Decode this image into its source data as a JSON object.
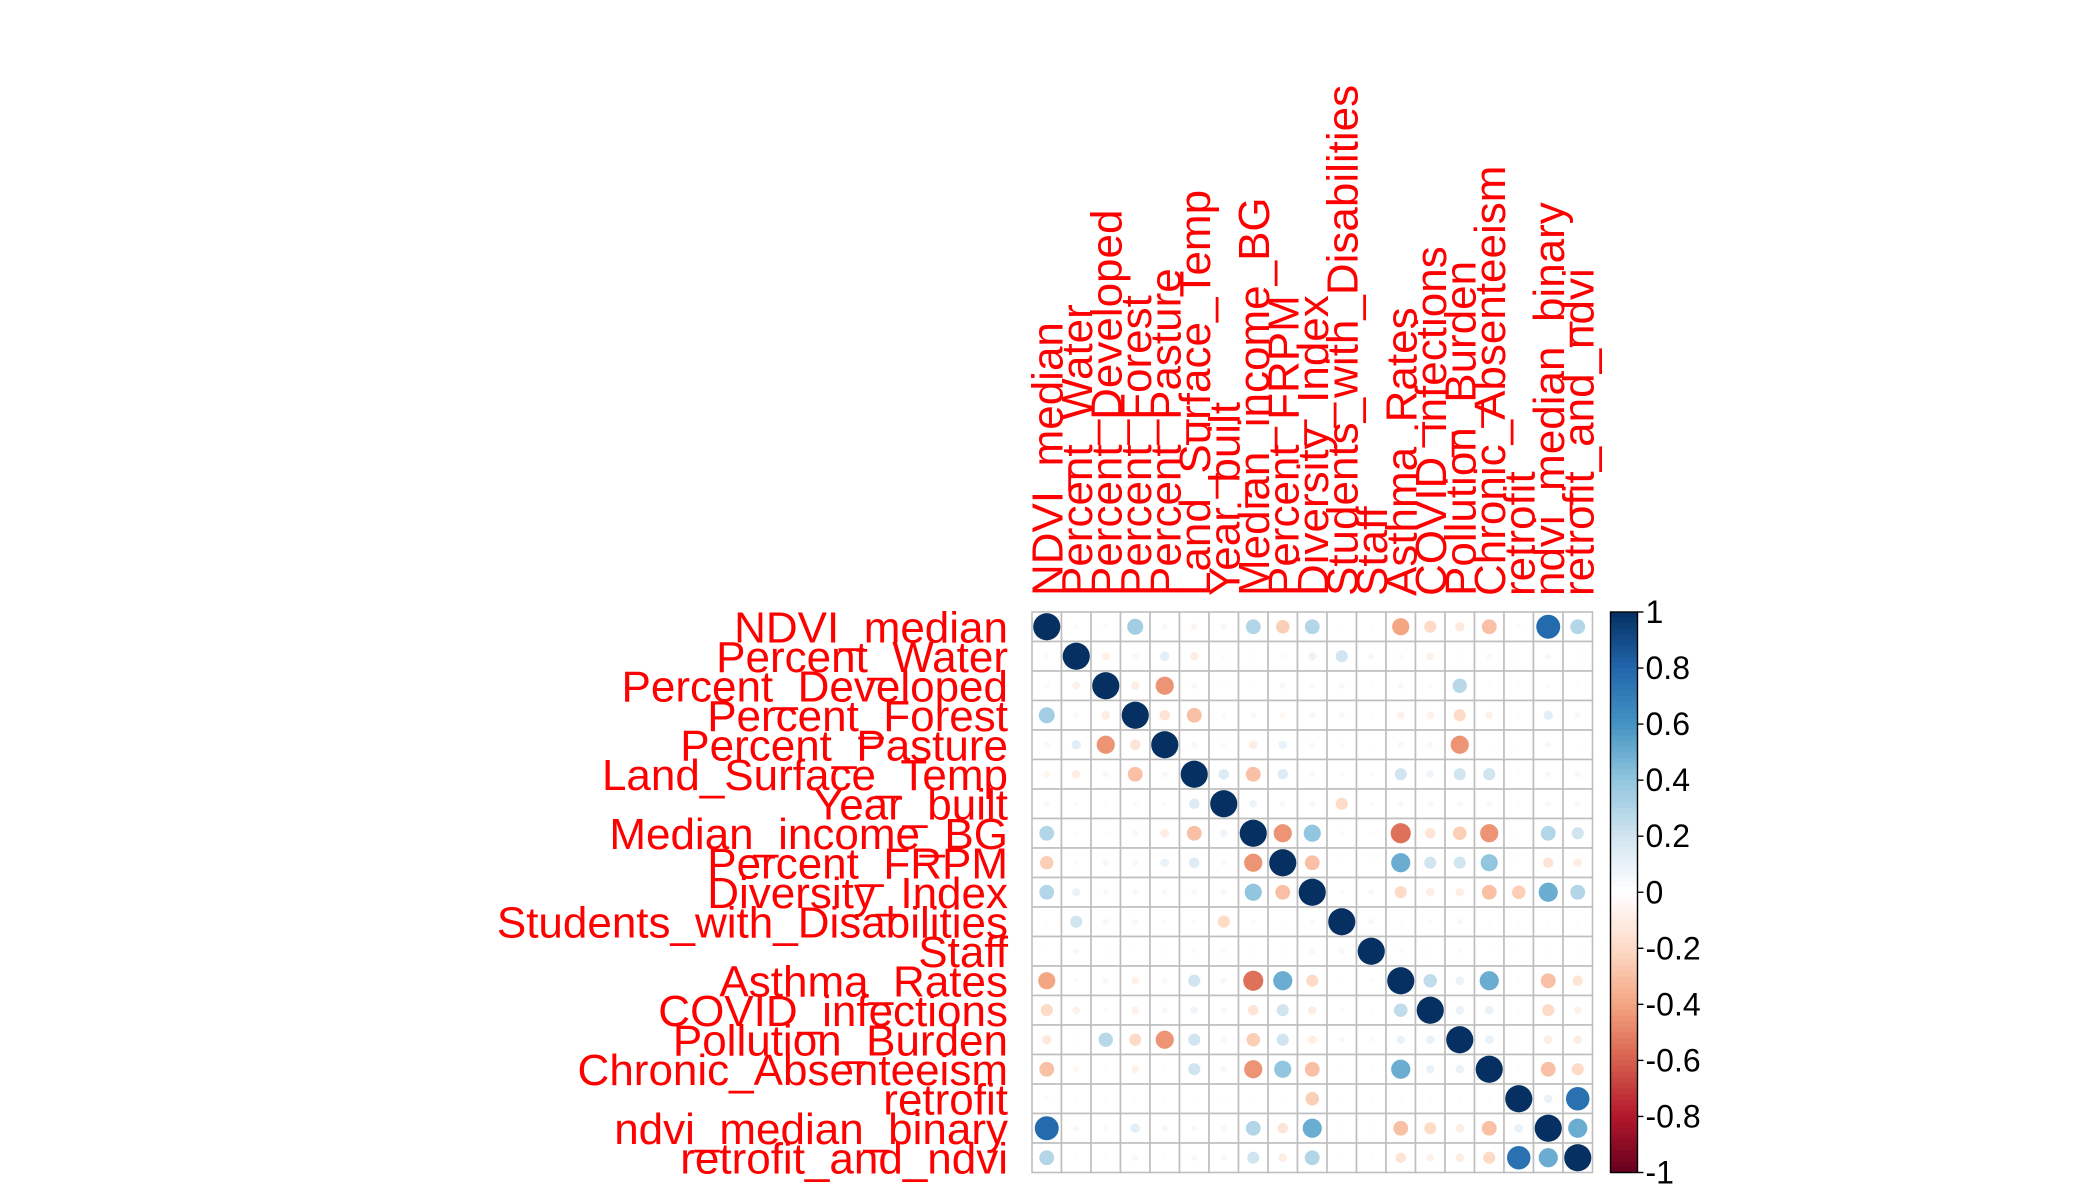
{
  "chart_data": {
    "type": "heatmap",
    "variables": [
      "NDVI_median",
      "Percent_Water",
      "Percent_Developed",
      "Percent_Forest",
      "Percent_Pasture",
      "Land_Surface_Temp",
      "Year_built",
      "Median_income_BG",
      "Percent_FRPM",
      "Diversity_Index",
      "Students_with_Disabilities",
      "Staff",
      "Asthma_Rates",
      "COVID_infections",
      "Pollution_Burden",
      "Chronic_Absenteeism",
      "retrofit",
      "ndvi_median_binary",
      "retrofit_and_ndvi"
    ],
    "matrix": [
      [
        1,
        0.03,
        -0.04,
        0.35,
        0.05,
        -0.06,
        0.05,
        0.3,
        -0.25,
        0.3,
        0.02,
        0.02,
        -0.4,
        -0.2,
        -0.12,
        -0.3,
        0.03,
        0.78,
        0.3
      ],
      [
        0.03,
        1,
        -0.08,
        0.05,
        0.12,
        -0.1,
        0.03,
        0.02,
        0.03,
        0.09,
        0.2,
        0.05,
        0.03,
        -0.08,
        0.02,
        -0.05,
        0.02,
        0.05,
        0.02
      ],
      [
        -0.04,
        -0.08,
        1,
        -0.1,
        -0.45,
        0.05,
        0.02,
        0.02,
        0.05,
        0.04,
        0.05,
        0.02,
        0.05,
        0.03,
        0.28,
        0.02,
        0.02,
        0.03,
        0.02
      ],
      [
        0.35,
        0.05,
        -0.1,
        1,
        -0.15,
        -0.3,
        0.03,
        0.05,
        -0.05,
        0.05,
        0.05,
        0.02,
        -0.08,
        -0.08,
        -0.2,
        -0.08,
        0.02,
        0.12,
        0.05
      ],
      [
        0.05,
        0.12,
        -0.45,
        -0.15,
        1,
        0.05,
        0.03,
        -0.1,
        0.1,
        0.04,
        0.03,
        0.02,
        0.05,
        0.05,
        -0.45,
        0.02,
        0.02,
        0.05,
        0.02
      ],
      [
        -0.06,
        -0.1,
        0.05,
        -0.3,
        0.05,
        1,
        0.15,
        -0.3,
        0.15,
        0.05,
        0.03,
        0.03,
        0.2,
        0.08,
        0.2,
        0.2,
        0.02,
        0.05,
        0.05
      ],
      [
        0.05,
        0.03,
        0.02,
        0.03,
        0.03,
        0.15,
        1,
        0.08,
        0.05,
        0.05,
        -0.2,
        0.03,
        0.05,
        0.05,
        0.05,
        0.05,
        0.02,
        0.05,
        0.05
      ],
      [
        0.3,
        0.02,
        0.02,
        0.05,
        -0.1,
        -0.3,
        0.08,
        1,
        -0.45,
        0.4,
        0.03,
        0.02,
        -0.55,
        -0.15,
        -0.25,
        -0.45,
        0.02,
        0.3,
        0.2
      ],
      [
        -0.25,
        0.03,
        0.05,
        -0.05,
        0.1,
        0.15,
        0.05,
        -0.45,
        1,
        -0.3,
        0.02,
        0.02,
        0.5,
        0.2,
        0.2,
        0.4,
        0.02,
        -0.15,
        -0.1
      ],
      [
        0.3,
        0.09,
        0.04,
        0.05,
        0.04,
        0.05,
        0.05,
        0.4,
        -0.3,
        1,
        0.03,
        0.05,
        -0.2,
        -0.1,
        -0.1,
        -0.3,
        -0.25,
        0.5,
        0.3
      ],
      [
        0.02,
        0.2,
        0.05,
        0.05,
        0.03,
        0.03,
        -0.2,
        0.03,
        0.02,
        0.03,
        1,
        0.05,
        0.02,
        0.03,
        0.05,
        0.02,
        0.02,
        0.02,
        0.02
      ],
      [
        0.02,
        0.05,
        0.02,
        0.02,
        0.02,
        0.03,
        0.03,
        0.02,
        0.02,
        0.05,
        0.05,
        1,
        0.03,
        0.02,
        0.03,
        0.02,
        0.02,
        0.02,
        0.02
      ],
      [
        -0.4,
        0.03,
        0.05,
        -0.08,
        0.05,
        0.2,
        0.05,
        -0.55,
        0.5,
        -0.2,
        0.02,
        0.03,
        1,
        0.25,
        0.1,
        0.5,
        0.02,
        -0.3,
        -0.15
      ],
      [
        -0.2,
        -0.08,
        0.03,
        -0.08,
        0.05,
        0.08,
        0.05,
        -0.15,
        0.2,
        -0.1,
        0.03,
        0.02,
        0.25,
        1,
        0.1,
        0.1,
        0.02,
        -0.2,
        -0.08
      ],
      [
        -0.12,
        0.02,
        0.28,
        -0.2,
        -0.45,
        0.2,
        0.05,
        -0.25,
        0.2,
        -0.1,
        0.05,
        0.03,
        0.1,
        0.1,
        1,
        0.1,
        0.02,
        -0.1,
        -0.1
      ],
      [
        -0.3,
        -0.05,
        0.02,
        -0.08,
        0.02,
        0.2,
        0.05,
        -0.45,
        0.4,
        -0.3,
        0.02,
        0.02,
        0.5,
        0.1,
        0.1,
        1,
        0.02,
        -0.3,
        -0.2
      ],
      [
        0.03,
        0.02,
        0.02,
        0.02,
        0.02,
        0.02,
        0.02,
        0.02,
        0.02,
        -0.25,
        0.02,
        0.02,
        0.02,
        0.02,
        0.02,
        0.02,
        1,
        0.1,
        0.75
      ],
      [
        0.78,
        0.05,
        0.03,
        0.12,
        0.05,
        0.05,
        0.05,
        0.3,
        -0.15,
        0.5,
        0.02,
        0.02,
        -0.3,
        -0.2,
        -0.1,
        -0.3,
        0.1,
        1,
        0.5
      ],
      [
        0.3,
        0.02,
        0.02,
        0.05,
        0.02,
        0.05,
        0.05,
        0.2,
        -0.1,
        0.3,
        0.02,
        0.02,
        -0.15,
        -0.08,
        -0.1,
        -0.2,
        0.75,
        0.5,
        1
      ]
    ],
    "colorbar": {
      "ticks": [
        "1",
        "0.8",
        "0.6",
        "0.4",
        "0.2",
        "0",
        "-0.2",
        "-0.4",
        "-0.6",
        "-0.8",
        "-1"
      ],
      "range": [
        -1,
        1
      ],
      "low_color": "#67001F",
      "mid_color": "#FFFFFF",
      "high_color": "#053061"
    },
    "label_color": "#FF0000",
    "grid_color": "#BEBEBE"
  }
}
